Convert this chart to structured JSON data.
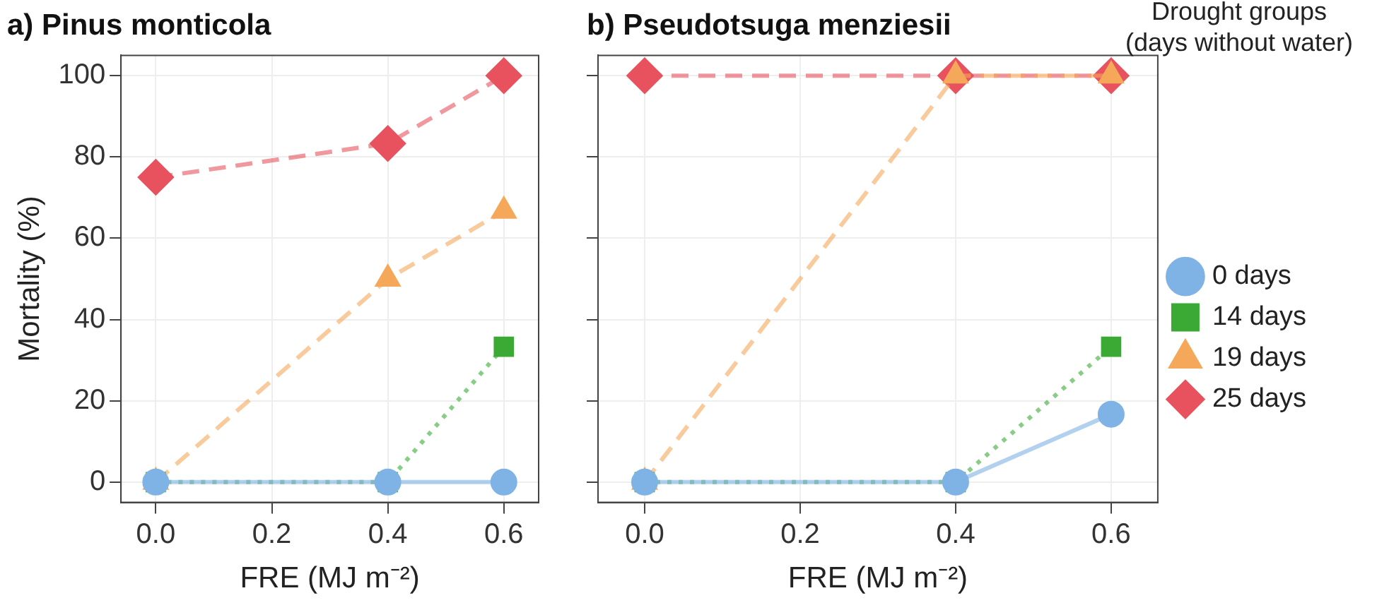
{
  "chart_data": [
    {
      "type": "line",
      "title": "a) Pinus monticola",
      "xlabel": "FRE (MJ m⁻²)",
      "ylabel": "Mortality (%)",
      "x": [
        0,
        0.4,
        0.6
      ],
      "xlim": [
        -0.06,
        0.66
      ],
      "xticks": [
        {
          "value": 0,
          "label": "0.0"
        },
        {
          "value": 0.2,
          "label": "0.2"
        },
        {
          "value": 0.4,
          "label": "0.4"
        },
        {
          "value": 0.6,
          "label": "0.6"
        }
      ],
      "ylim": [
        -5,
        105
      ],
      "yticks": [
        0,
        20,
        40,
        60,
        80,
        100
      ],
      "grid": true,
      "legend": false,
      "series": [
        {
          "color": "#7fb2e5",
          "values": [
            0,
            0,
            0
          ],
          "marker": "circle",
          "line_style": "solid"
        },
        {
          "color": "#3aaa35",
          "values": [
            0,
            0,
            33.3
          ],
          "marker": "square",
          "line_style": "dotted"
        },
        {
          "color": "#f5a85a",
          "values": [
            0,
            50,
            66.7
          ],
          "marker": "triangle",
          "line_style": "dashed"
        },
        {
          "color": "#e8525e",
          "values": [
            75,
            83.3,
            100
          ],
          "marker": "diamond",
          "line_style": "dashed"
        }
      ]
    },
    {
      "type": "line",
      "title": "b) Pseudotsuga menziesii",
      "xlabel": "FRE (MJ m⁻²)",
      "legend_title": "Drought groups\n(days without water)",
      "x": [
        0,
        0.4,
        0.6
      ],
      "xlim": [
        -0.06,
        0.66
      ],
      "xticks": [
        {
          "value": 0,
          "label": "0.0"
        },
        {
          "value": 0.2,
          "label": "0.2"
        },
        {
          "value": 0.4,
          "label": "0.4"
        },
        {
          "value": 0.6,
          "label": "0.6"
        }
      ],
      "ylim": [
        -5,
        105
      ],
      "yticks": [
        0,
        20,
        40,
        60,
        80,
        100
      ],
      "tick_labels": "x",
      "grid": true,
      "legend": "right",
      "series": [
        {
          "name": "0 days",
          "color": "#7fb2e5",
          "values": [
            0,
            0,
            16.7
          ],
          "marker": "circle",
          "line_style": "solid"
        },
        {
          "name": "14 days",
          "color": "#3aaa35",
          "values": [
            0,
            0,
            33.3
          ],
          "marker": "square",
          "line_style": "dotted"
        },
        {
          "name": "19 days",
          "color": "#f5a85a",
          "values": [
            0,
            100,
            100
          ],
          "marker": "triangle",
          "line_style": "dashed"
        },
        {
          "name": "25 days",
          "color": "#e8525e",
          "values": [
            100,
            100,
            100
          ],
          "marker": "diamond",
          "line_style": "dashed"
        }
      ]
    }
  ]
}
